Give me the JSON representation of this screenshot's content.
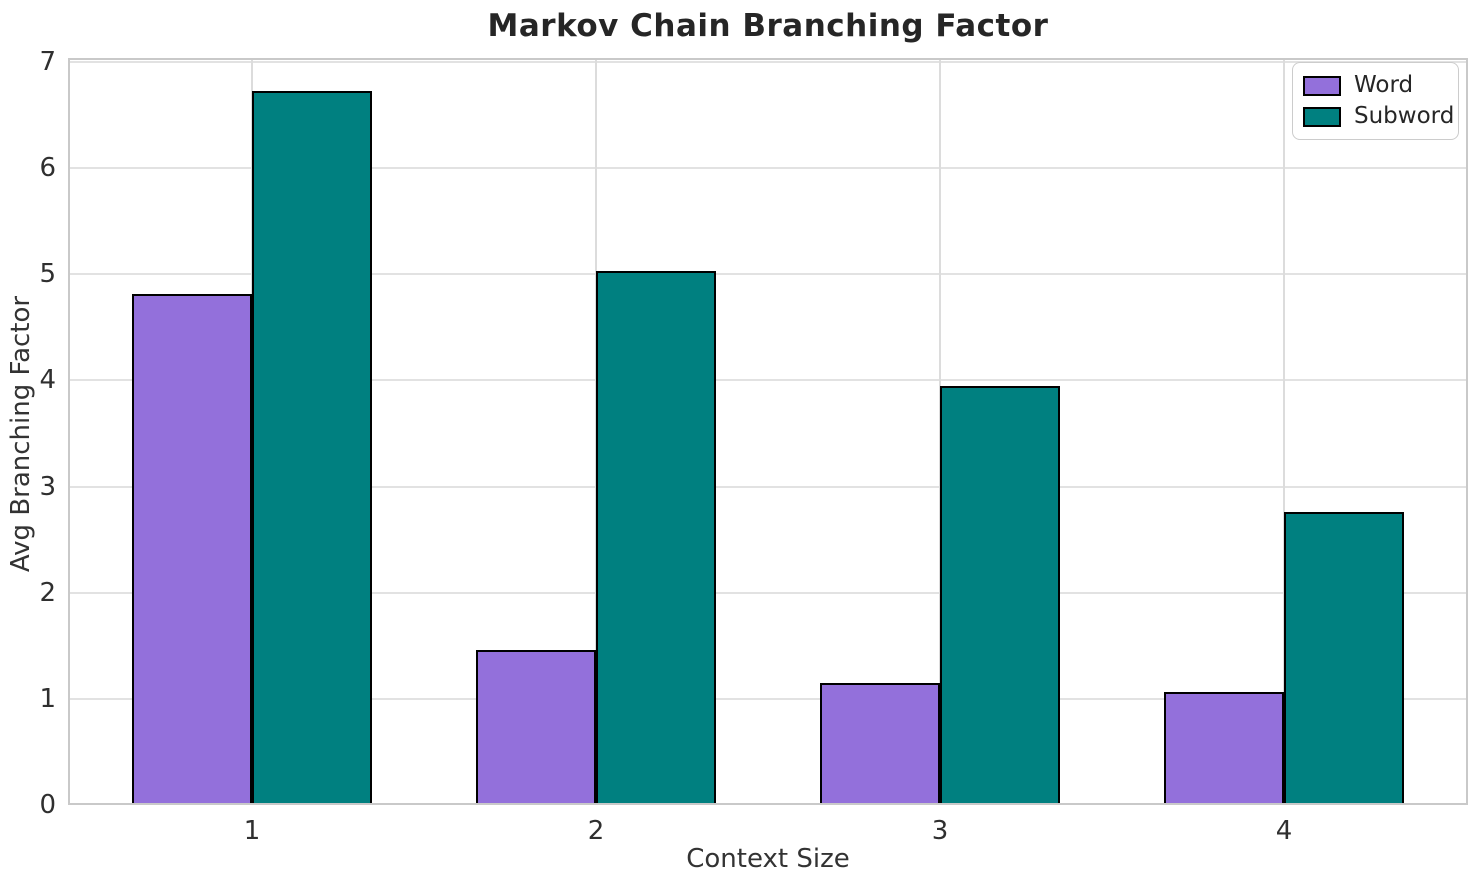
{
  "chart_data": {
    "type": "bar",
    "title": "Markov Chain Branching Factor",
    "xlabel": "Context Size",
    "ylabel": "Avg Branching Factor",
    "categories": [
      "1",
      "2",
      "3",
      "4"
    ],
    "series": [
      {
        "name": "Word",
        "color": "#9370DB",
        "values": [
          4.81,
          1.46,
          1.15,
          1.06
        ]
      },
      {
        "name": "Subword",
        "color": "#008080",
        "values": [
          6.73,
          5.03,
          3.95,
          2.76
        ]
      }
    ],
    "ylim": [
      0,
      7
    ],
    "yticks": [
      0,
      1,
      2,
      3,
      4,
      5,
      6,
      7
    ],
    "grid": true,
    "legend_position": "upper right",
    "bar_width_data_units": 0.35,
    "bar_edge_color": "#000000",
    "grid_color": "#e2e2e2",
    "spine_color": "#c9c9c9",
    "text_color": "#262626",
    "background_color": "#ffffff"
  }
}
